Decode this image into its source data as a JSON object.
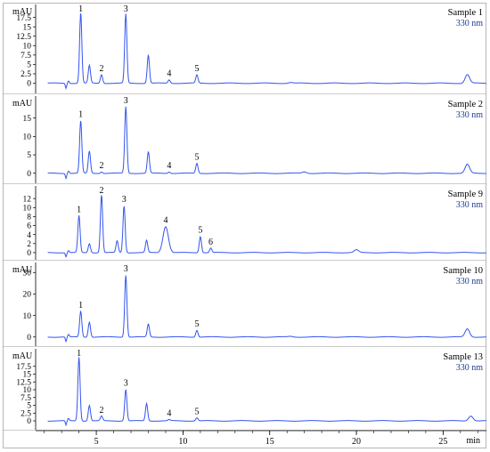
{
  "chart_data": {
    "type": "line",
    "x_axis": {
      "unit": "min",
      "range": [
        1.5,
        27.5
      ],
      "ticks": [
        5,
        10,
        15,
        20,
        25
      ],
      "minor_step": 1
    },
    "colors": {
      "trace": "#3355ee",
      "axis": "#000000",
      "wavelength": "#1a3e96"
    },
    "panels": [
      {
        "sample": "Sample 1",
        "wavelength": "330 nm",
        "y_unit": "mAU",
        "ylim": [
          -2,
          20
        ],
        "yticks": [
          0,
          2.5,
          5,
          7.5,
          10,
          12.5,
          15,
          17.5
        ],
        "ytick_labels": [
          "0",
          "2.5",
          "5",
          "7.5",
          "10",
          "12.5",
          "15",
          "17.5"
        ],
        "baseline": 0,
        "peaks": [
          {
            "label": "1",
            "x": 4.1,
            "y": 18.8
          },
          {
            "label": "",
            "x": 4.6,
            "y": 4.7
          },
          {
            "label": "2",
            "x": 5.3,
            "y": 2.3
          },
          {
            "label": "3",
            "x": 6.7,
            "y": 18.4
          },
          {
            "label": "",
            "x": 8.0,
            "y": 7.5
          },
          {
            "label": "4",
            "x": 9.2,
            "y": 0.9
          },
          {
            "label": "5",
            "x": 10.8,
            "y": 2.2
          },
          {
            "label": "",
            "x": 16.2,
            "y": 0.2
          },
          {
            "label": "",
            "x": 26.4,
            "y": 2.3
          }
        ]
      },
      {
        "sample": "Sample  2",
        "wavelength": "330 nm",
        "y_unit": "mAU",
        "ylim": [
          -2,
          20
        ],
        "yticks": [
          0,
          5,
          10,
          15
        ],
        "ytick_labels": [
          "0",
          "5",
          "10",
          "15"
        ],
        "baseline": 0,
        "peaks": [
          {
            "label": "1",
            "x": 4.1,
            "y": 14.3
          },
          {
            "label": "",
            "x": 4.6,
            "y": 6.0
          },
          {
            "label": "2",
            "x": 5.3,
            "y": 0.4
          },
          {
            "label": "3",
            "x": 6.7,
            "y": 18.1
          },
          {
            "label": "",
            "x": 8.0,
            "y": 5.8
          },
          {
            "label": "4",
            "x": 9.2,
            "y": 0.4
          },
          {
            "label": "5",
            "x": 10.8,
            "y": 2.7
          },
          {
            "label": "",
            "x": 17.0,
            "y": 0.4
          },
          {
            "label": "",
            "x": 26.4,
            "y": 2.4
          }
        ]
      },
      {
        "sample": "Sample 9",
        "wavelength": "330 nm",
        "y_unit": "",
        "ylim": [
          -1,
          14
        ],
        "yticks": [
          0,
          2,
          4,
          6,
          8,
          10,
          12
        ],
        "ytick_labels": [
          "0",
          "2",
          "4",
          "6",
          "8",
          "10",
          "12"
        ],
        "baseline": 0,
        "peaks": [
          {
            "label": "1",
            "x": 4.0,
            "y": 8.2
          },
          {
            "label": "",
            "x": 4.6,
            "y": 2.0
          },
          {
            "label": "2",
            "x": 5.3,
            "y": 12.9
          },
          {
            "label": "",
            "x": 6.2,
            "y": 2.6
          },
          {
            "label": "3",
            "x": 6.6,
            "y": 10.4
          },
          {
            "label": "",
            "x": 7.9,
            "y": 2.7
          },
          {
            "label": "4",
            "x": 9.0,
            "y": 5.8
          },
          {
            "label": "5",
            "x": 11.0,
            "y": 3.6
          },
          {
            "label": "6",
            "x": 11.6,
            "y": 1.0
          },
          {
            "label": "",
            "x": 20.0,
            "y": 0.6
          }
        ]
      },
      {
        "sample": "Sample 10",
        "wavelength": "330 nm",
        "y_unit": "mAU",
        "ylim": [
          -3,
          33
        ],
        "yticks": [
          0,
          10,
          20,
          30
        ],
        "ytick_labels": [
          "0",
          "10",
          "20",
          "30"
        ],
        "baseline": 0,
        "peaks": [
          {
            "label": "1",
            "x": 4.1,
            "y": 12.0
          },
          {
            "label": "",
            "x": 4.6,
            "y": 7.0
          },
          {
            "label": "3",
            "x": 6.7,
            "y": 28.8
          },
          {
            "label": "",
            "x": 8.0,
            "y": 6.0
          },
          {
            "label": "5",
            "x": 10.8,
            "y": 3.2
          },
          {
            "label": "",
            "x": 16.2,
            "y": 0.3
          },
          {
            "label": "",
            "x": 26.4,
            "y": 3.8
          }
        ]
      },
      {
        "sample": "Sample 13",
        "wavelength": "330 nm",
        "y_unit": "mAU",
        "ylim": [
          -2,
          22
        ],
        "yticks": [
          0,
          2.5,
          5,
          7.5,
          10,
          12.5,
          15,
          17.5
        ],
        "ytick_labels": [
          "0",
          "2.5",
          "5",
          "7.5",
          "10",
          "12.5",
          "15",
          "17.5"
        ],
        "baseline": 0,
        "peaks": [
          {
            "label": "1",
            "x": 4.0,
            "y": 20.5
          },
          {
            "label": "",
            "x": 4.6,
            "y": 5.0
          },
          {
            "label": "2",
            "x": 5.3,
            "y": 1.5
          },
          {
            "label": "3",
            "x": 6.7,
            "y": 10.1
          },
          {
            "label": "",
            "x": 7.9,
            "y": 5.6
          },
          {
            "label": "4",
            "x": 9.2,
            "y": 0.4
          },
          {
            "label": "5",
            "x": 10.8,
            "y": 1.0
          },
          {
            "label": "",
            "x": 26.6,
            "y": 1.6
          }
        ]
      }
    ]
  }
}
